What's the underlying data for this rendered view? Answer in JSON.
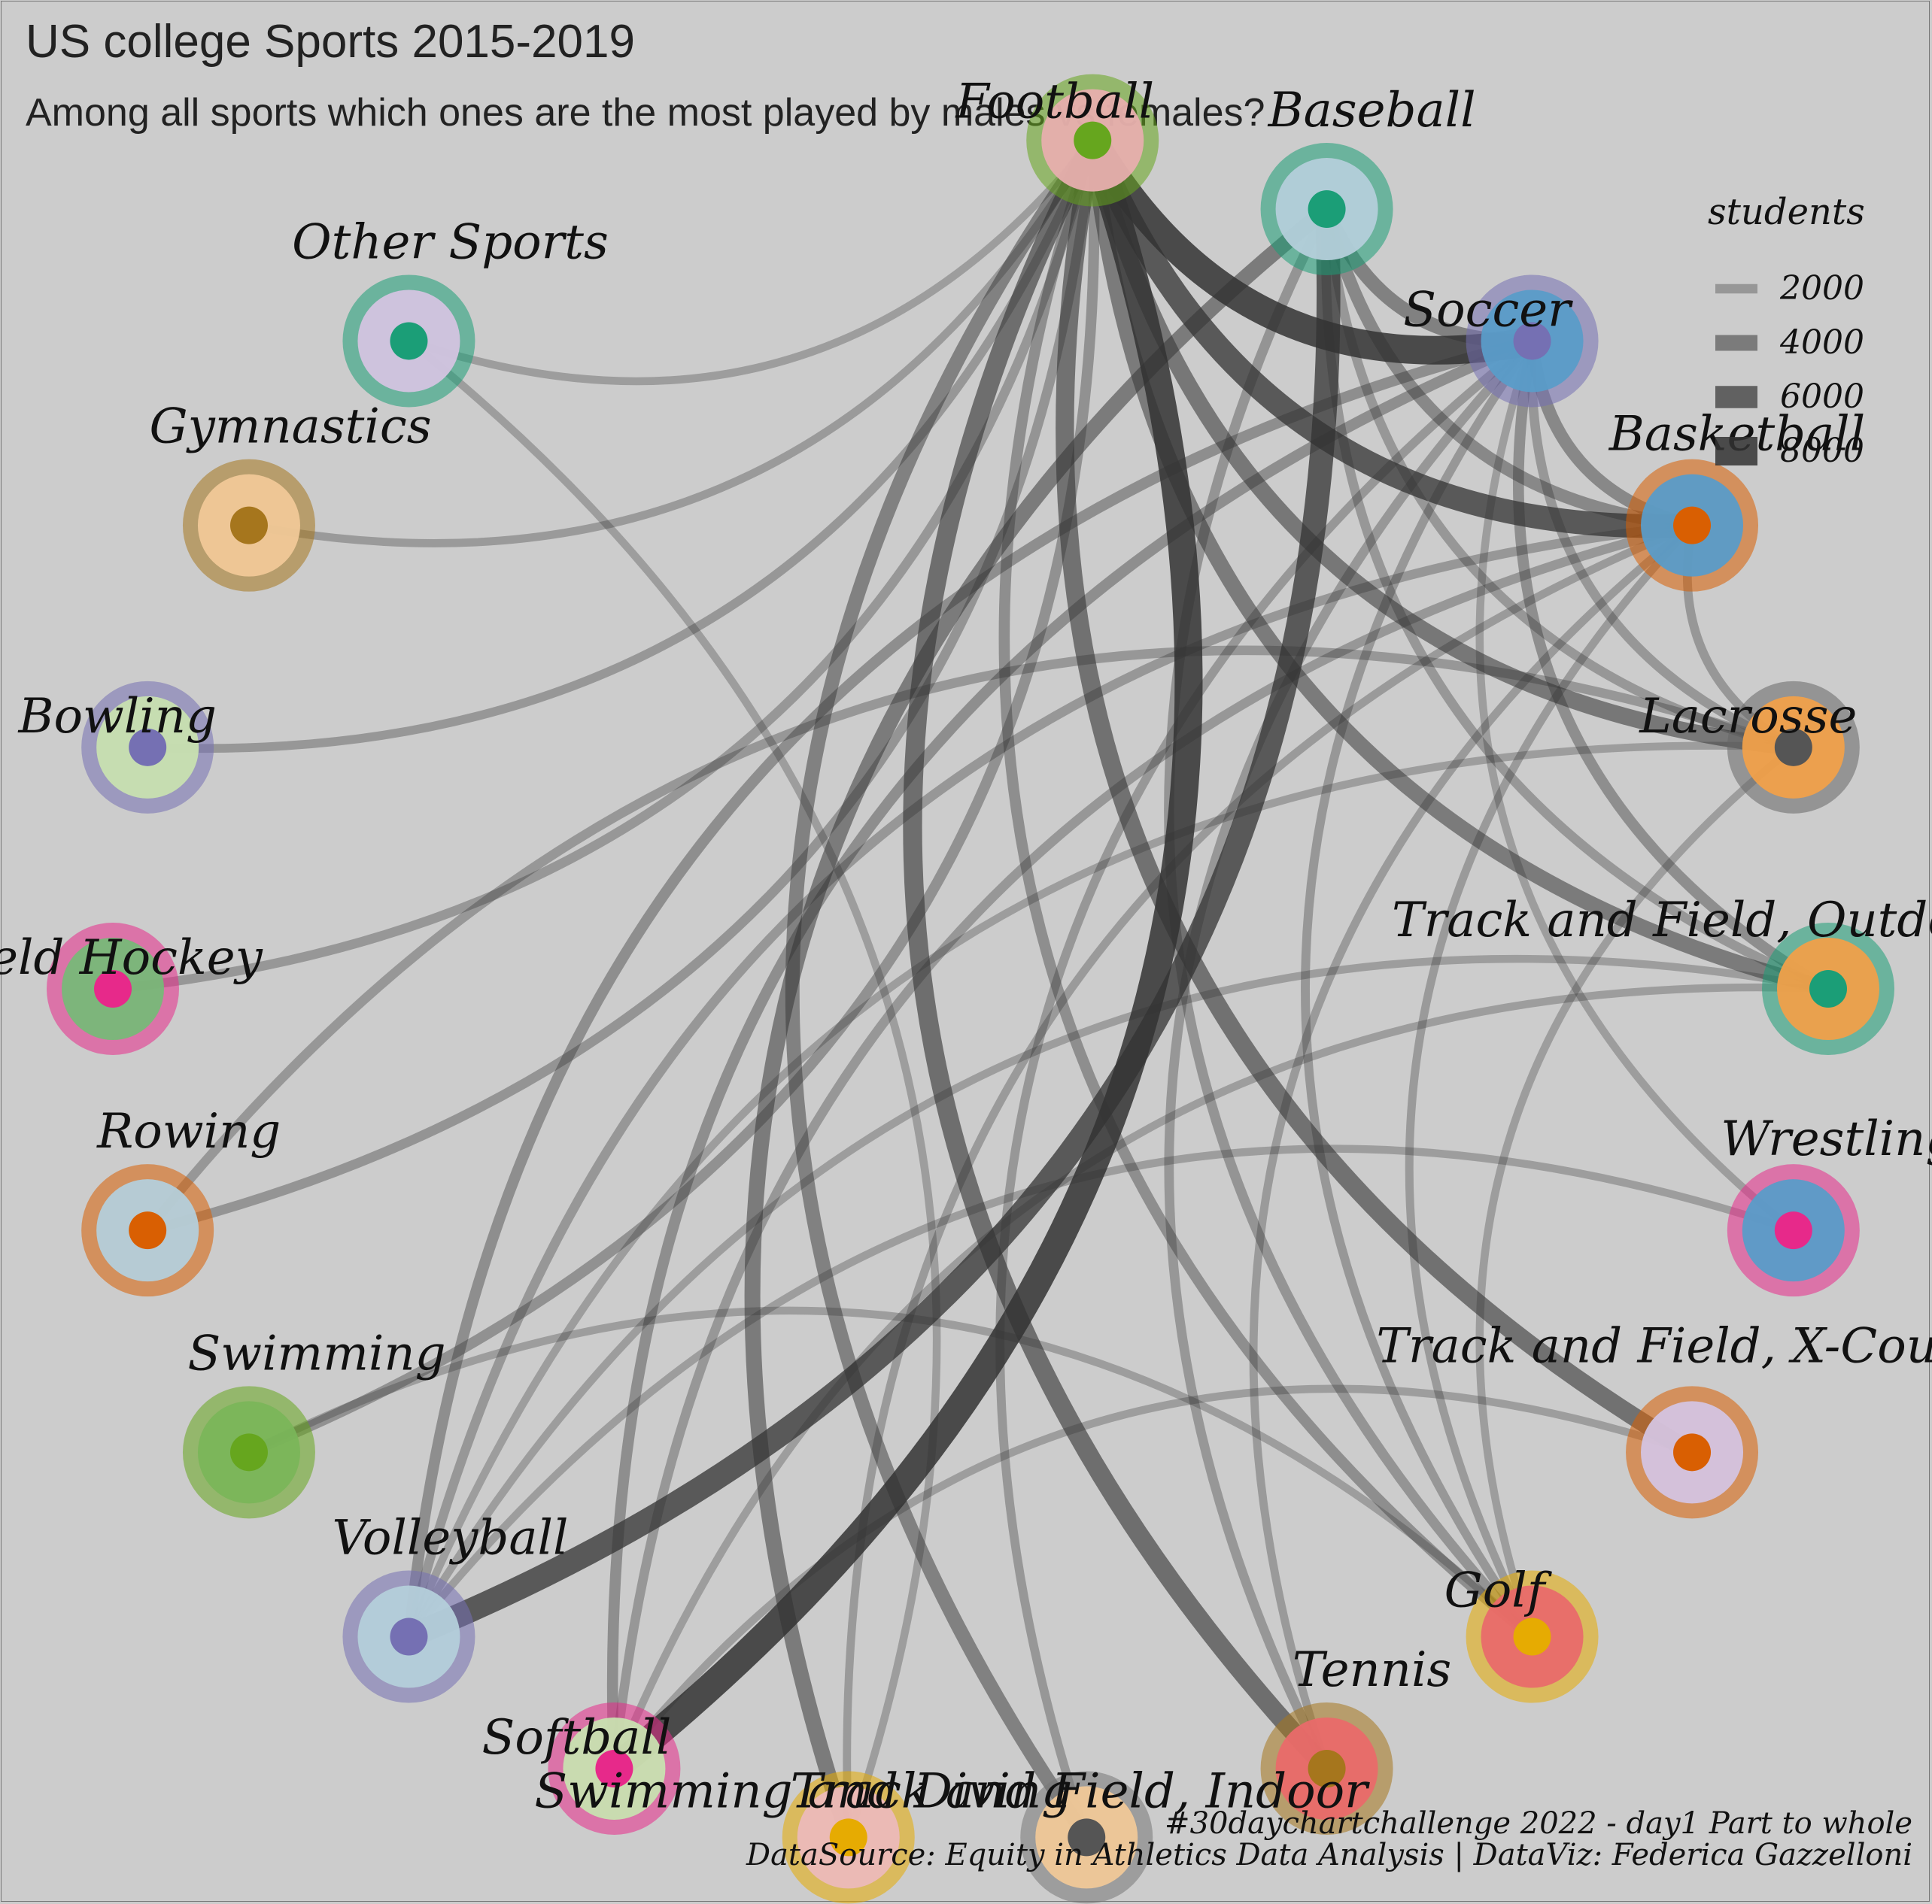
{
  "title": "US college Sports 2015-2019",
  "subtitle": "Among all sports which ones are the most played by males vs females?",
  "caption": {
    "line1": "#30daychartchallenge 2022 - day1 Part to whole",
    "line2": "DataSource: Equity in Athletics Data Analysis | DataViz: Federica Gazzelloni"
  },
  "chart_data": {
    "type": "network",
    "layout": "circular",
    "edge_weight_label": "students",
    "legend": {
      "title": "students",
      "placement": "top-right",
      "entries": [
        2000,
        4000,
        6000,
        8000
      ]
    },
    "nodes": [
      {
        "name": "Football",
        "inner": "#66a61e",
        "mid": "#e7aeae",
        "outer": "#66a61e"
      },
      {
        "name": "Baseball",
        "inner": "#1b9e77",
        "mid": "#b4cfda",
        "outer": "#1b9e77"
      },
      {
        "name": "Soccer",
        "inner": "#7570b3",
        "mid": "#5a9cc8",
        "outer": "#7570b3"
      },
      {
        "name": "Basketball",
        "inner": "#d95f02",
        "mid": "#5a9cc8",
        "outer": "#d95f02"
      },
      {
        "name": "Lacrosse",
        "inner": "#555555",
        "mid": "#f0a04a",
        "outer": "#666666"
      },
      {
        "name": "Track and Field, Outdoor",
        "inner": "#1b9e77",
        "mid": "#f0a04a",
        "outer": "#1b9e77"
      },
      {
        "name": "Wrestling",
        "inner": "#e7298a",
        "mid": "#5a9cc8",
        "outer": "#e7298a"
      },
      {
        "name": "Track and Field, X-Country",
        "inner": "#d95f02",
        "mid": "#d4c4e0",
        "outer": "#d95f02"
      },
      {
        "name": "Golf",
        "inner": "#e6ab02",
        "mid": "#e96a6a",
        "outer": "#e6ab02"
      },
      {
        "name": "Tennis",
        "inner": "#a6761d",
        "mid": "#e96a6a",
        "outer": "#a6761d"
      },
      {
        "name": "Track and Field, Indoor",
        "inner": "#555555",
        "mid": "#f0c898",
        "outer": "#777777"
      },
      {
        "name": "Swimming and Diving",
        "inner": "#e6ab02",
        "mid": "#ecb9b9",
        "outer": "#e6ab02"
      },
      {
        "name": "Softball",
        "inner": "#e7298a",
        "mid": "#c8e0b0",
        "outer": "#e7298a"
      },
      {
        "name": "Volleyball",
        "inner": "#7570b3",
        "mid": "#b4cfda",
        "outer": "#7570b3"
      },
      {
        "name": "Swimming",
        "inner": "#66a61e",
        "mid": "#7ab55a",
        "outer": "#66a61e"
      },
      {
        "name": "Rowing",
        "inner": "#d95f02",
        "mid": "#b4cfda",
        "outer": "#d95f02"
      },
      {
        "name": "Field Hockey",
        "inner": "#e7298a",
        "mid": "#78b878",
        "outer": "#e7298a"
      },
      {
        "name": "Bowling",
        "inner": "#7570b3",
        "mid": "#c8e0b0",
        "outer": "#7570b3"
      },
      {
        "name": "Gymnastics",
        "inner": "#a6761d",
        "mid": "#f0c898",
        "outer": "#a6761d"
      },
      {
        "name": "Other Sports",
        "inner": "#1b9e77",
        "mid": "#d4c4e0",
        "outer": "#1b9e77"
      }
    ],
    "edges": [
      {
        "from": "Football",
        "to": "Soccer",
        "students": 8000
      },
      {
        "from": "Football",
        "to": "Softball",
        "students": 7800
      },
      {
        "from": "Football",
        "to": "Basketball",
        "students": 6500
      },
      {
        "from": "Football",
        "to": "Tennis",
        "students": 5000
      },
      {
        "from": "Football",
        "to": "Track and Field, X-Country",
        "students": 4800
      },
      {
        "from": "Football",
        "to": "Lacrosse",
        "students": 4300
      },
      {
        "from": "Football",
        "to": "Track and Field, Outdoor",
        "students": 4000
      },
      {
        "from": "Football",
        "to": "Track and Field, Indoor",
        "students": 3500
      },
      {
        "from": "Football",
        "to": "Golf",
        "students": 2500
      },
      {
        "from": "Football",
        "to": "Swimming",
        "students": 2400
      },
      {
        "from": "Football",
        "to": "Rowing",
        "students": 2100
      },
      {
        "from": "Football",
        "to": "Field Hockey",
        "students": 2000
      },
      {
        "from": "Football",
        "to": "Bowling",
        "students": 1800
      },
      {
        "from": "Football",
        "to": "Gymnastics",
        "students": 1600
      },
      {
        "from": "Football",
        "to": "Other Sports",
        "students": 1500
      },
      {
        "from": "Baseball",
        "to": "Volleyball",
        "students": 6500
      },
      {
        "from": "Baseball",
        "to": "Swimming and Diving",
        "students": 4000
      },
      {
        "from": "Baseball",
        "to": "Soccer",
        "students": 3500
      },
      {
        "from": "Baseball",
        "to": "Basketball",
        "students": 3000
      },
      {
        "from": "Baseball",
        "to": "Golf",
        "students": 2200
      },
      {
        "from": "Baseball",
        "to": "Lacrosse",
        "students": 2000
      },
      {
        "from": "Baseball",
        "to": "Track and Field, Outdoor",
        "students": 2000
      },
      {
        "from": "Soccer",
        "to": "Basketball",
        "students": 3000
      },
      {
        "from": "Soccer",
        "to": "Softball",
        "students": 2500
      },
      {
        "from": "Soccer",
        "to": "Volleyball",
        "students": 2500
      },
      {
        "from": "Soccer",
        "to": "Lacrosse",
        "students": 2000
      },
      {
        "from": "Soccer",
        "to": "Track and Field, Outdoor",
        "students": 2500
      },
      {
        "from": "Soccer",
        "to": "Tennis",
        "students": 2000
      },
      {
        "from": "Soccer",
        "to": "Golf",
        "students": 1800
      },
      {
        "from": "Soccer",
        "to": "Track and Field, Indoor",
        "students": 1800
      },
      {
        "from": "Basketball",
        "to": "Lacrosse",
        "students": 1800
      },
      {
        "from": "Basketball",
        "to": "Volleyball",
        "students": 2000
      },
      {
        "from": "Basketball",
        "to": "Softball",
        "students": 2000
      },
      {
        "from": "Basketball",
        "to": "Golf",
        "students": 1600
      },
      {
        "from": "Basketball",
        "to": "Tennis",
        "students": 1600
      },
      {
        "from": "Basketball",
        "to": "Swimming and Diving",
        "students": 1600
      },
      {
        "from": "Lacrosse",
        "to": "Rowing",
        "students": 2000
      },
      {
        "from": "Lacrosse",
        "to": "Volleyball",
        "students": 1500
      },
      {
        "from": "Lacrosse",
        "to": "Golf",
        "students": 1500
      },
      {
        "from": "Track and Field, Outdoor",
        "to": "Softball",
        "students": 1500
      },
      {
        "from": "Track and Field, Outdoor",
        "to": "Volleyball",
        "students": 1500
      },
      {
        "from": "Wrestling",
        "to": "Volleyball",
        "students": 1500
      },
      {
        "from": "Wrestling",
        "to": "Soccer",
        "students": 1500
      },
      {
        "from": "Track and Field, X-Country",
        "to": "Softball",
        "students": 1500
      },
      {
        "from": "Golf",
        "to": "Swimming",
        "students": 1500
      },
      {
        "from": "Other Sports",
        "to": "Swimming and Diving",
        "students": 1500
      }
    ]
  }
}
